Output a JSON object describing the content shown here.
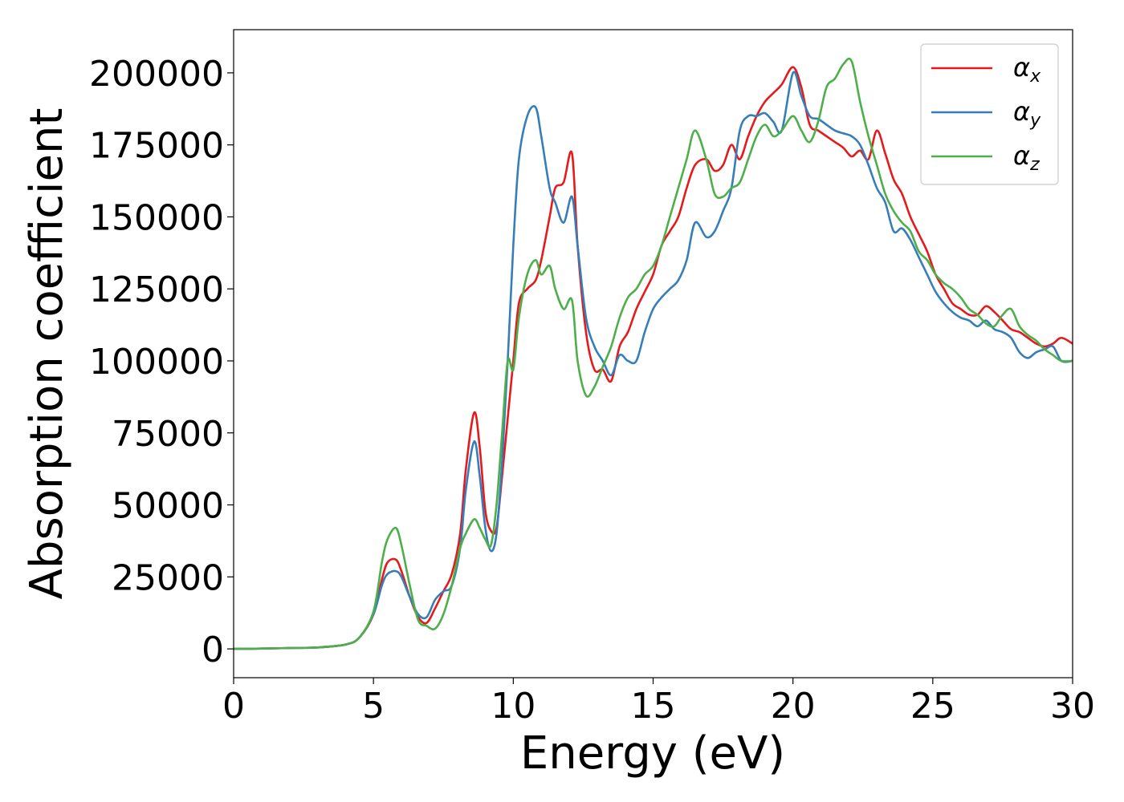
{
  "chart_data": {
    "type": "line",
    "title": "",
    "xlabel": "Energy (eV)",
    "ylabel": "Absorption coefficient",
    "xlim": [
      0,
      30
    ],
    "ylim": [
      -10000,
      215000
    ],
    "xticks": [
      0,
      5,
      10,
      15,
      20,
      25,
      30
    ],
    "yticks": [
      0,
      25000,
      50000,
      75000,
      100000,
      125000,
      150000,
      175000,
      200000
    ],
    "grid": false,
    "legend_position": "top-right",
    "series": [
      {
        "name": "α",
        "subscript": "x",
        "color": "#e41a1c",
        "x": [
          0,
          1,
          2,
          3,
          4,
          4.5,
          5,
          5.3,
          5.5,
          5.8,
          6.0,
          6.3,
          6.6,
          6.9,
          7.2,
          7.5,
          7.8,
          8.1,
          8.3,
          8.6,
          8.8,
          9.0,
          9.2,
          9.4,
          9.6,
          9.8,
          10.0,
          10.2,
          10.5,
          10.8,
          11.0,
          11.3,
          11.5,
          11.8,
          12.1,
          12.3,
          12.6,
          12.9,
          13.2,
          13.5,
          13.8,
          14.1,
          14.4,
          14.7,
          15.0,
          15.3,
          15.6,
          15.9,
          16.2,
          16.5,
          16.9,
          17.2,
          17.5,
          17.8,
          18.1,
          18.4,
          18.7,
          19.0,
          19.3,
          19.6,
          20.0,
          20.3,
          20.6,
          20.9,
          21.2,
          21.5,
          21.8,
          22.1,
          22.4,
          22.7,
          23.0,
          23.3,
          23.6,
          23.9,
          24.2,
          24.5,
          24.8,
          25.1,
          25.4,
          25.7,
          26.0,
          26.3,
          26.6,
          26.9,
          27.2,
          27.5,
          27.8,
          28.1,
          28.4,
          28.7,
          29.0,
          29.3,
          29.6,
          30.0
        ],
        "y": [
          0,
          100,
          300,
          500,
          1500,
          4000,
          12000,
          24000,
          30000,
          31000,
          27000,
          18000,
          11000,
          9000,
          14000,
          20000,
          26000,
          40000,
          62000,
          82000,
          70000,
          48000,
          41000,
          42000,
          60000,
          80000,
          100000,
          120000,
          125000,
          128000,
          135000,
          150000,
          160000,
          162000,
          172000,
          140000,
          110000,
          97000,
          97000,
          93000,
          105000,
          110000,
          118000,
          124000,
          130000,
          140000,
          145000,
          150000,
          160000,
          168000,
          170000,
          166000,
          168000,
          175000,
          170000,
          178000,
          185000,
          190000,
          193000,
          196000,
          202000,
          195000,
          182000,
          180000,
          178000,
          176000,
          174000,
          171000,
          173000,
          170000,
          180000,
          172000,
          163000,
          158000,
          150000,
          144000,
          138000,
          130000,
          125000,
          120000,
          118000,
          116000,
          116000,
          119000,
          117000,
          114000,
          111000,
          110000,
          108000,
          106000,
          105000,
          106000,
          108000,
          106000
        ]
      },
      {
        "name": "α",
        "subscript": "y",
        "color": "#377eb8",
        "x": [
          0,
          1,
          2,
          3,
          4,
          4.5,
          5,
          5.3,
          5.5,
          5.8,
          6.0,
          6.3,
          6.6,
          6.9,
          7.2,
          7.5,
          7.8,
          8.1,
          8.3,
          8.6,
          8.8,
          9.0,
          9.2,
          9.4,
          9.6,
          9.8,
          10.0,
          10.2,
          10.5,
          10.8,
          11.0,
          11.3,
          11.5,
          11.8,
          12.1,
          12.3,
          12.6,
          12.9,
          13.2,
          13.5,
          13.8,
          14.1,
          14.4,
          14.7,
          15.0,
          15.3,
          15.6,
          15.9,
          16.2,
          16.5,
          16.9,
          17.2,
          17.5,
          17.8,
          18.1,
          18.4,
          18.7,
          19.0,
          19.3,
          19.6,
          20.0,
          20.3,
          20.6,
          20.9,
          21.2,
          21.5,
          21.8,
          22.1,
          22.4,
          22.7,
          23.0,
          23.3,
          23.6,
          23.9,
          24.2,
          24.5,
          24.8,
          25.1,
          25.4,
          25.7,
          26.0,
          26.3,
          26.6,
          26.9,
          27.2,
          27.5,
          27.8,
          28.1,
          28.4,
          28.7,
          29.0,
          29.3,
          29.6,
          30.0
        ],
        "y": [
          0,
          100,
          300,
          500,
          1500,
          4000,
          12000,
          22000,
          26000,
          27000,
          25000,
          18000,
          12000,
          11000,
          17000,
          20000,
          22000,
          35000,
          55000,
          72000,
          60000,
          42000,
          34000,
          40000,
          65000,
          100000,
          140000,
          170000,
          185000,
          188000,
          178000,
          160000,
          155000,
          148000,
          157000,
          140000,
          115000,
          105000,
          100000,
          95000,
          102000,
          100000,
          100000,
          110000,
          118000,
          122000,
          125000,
          128000,
          135000,
          148000,
          143000,
          145000,
          152000,
          160000,
          180000,
          185000,
          185000,
          186000,
          183000,
          180000,
          200000,
          192000,
          185000,
          184000,
          182000,
          180000,
          179000,
          178000,
          175000,
          168000,
          160000,
          155000,
          145000,
          146000,
          142000,
          136000,
          130000,
          124000,
          120000,
          117000,
          115000,
          114000,
          112000,
          114000,
          111000,
          110000,
          108000,
          103000,
          101000,
          103000,
          104000,
          105000,
          100000,
          100000
        ]
      },
      {
        "name": "α",
        "subscript": "z",
        "color": "#4daf4a",
        "x": [
          0,
          1,
          2,
          3,
          4,
          4.5,
          5,
          5.3,
          5.5,
          5.8,
          6.0,
          6.3,
          6.6,
          6.9,
          7.2,
          7.5,
          7.8,
          8.1,
          8.3,
          8.6,
          8.8,
          9.0,
          9.2,
          9.4,
          9.6,
          9.8,
          10.0,
          10.2,
          10.5,
          10.8,
          11.0,
          11.3,
          11.5,
          11.8,
          12.1,
          12.3,
          12.6,
          12.9,
          13.2,
          13.5,
          13.8,
          14.1,
          14.4,
          14.7,
          15.0,
          15.3,
          15.6,
          15.9,
          16.2,
          16.5,
          16.9,
          17.2,
          17.5,
          17.8,
          18.1,
          18.4,
          18.7,
          19.0,
          19.3,
          19.6,
          20.0,
          20.3,
          20.6,
          20.9,
          21.2,
          21.5,
          21.8,
          22.1,
          22.4,
          22.7,
          23.0,
          23.3,
          23.6,
          23.9,
          24.2,
          24.5,
          24.8,
          25.1,
          25.4,
          25.7,
          26.0,
          26.3,
          26.6,
          26.9,
          27.2,
          27.5,
          27.8,
          28.1,
          28.4,
          28.7,
          29.0,
          29.3,
          29.6,
          30.0
        ],
        "y": [
          0,
          100,
          300,
          500,
          1500,
          4000,
          13000,
          30000,
          38000,
          42000,
          36000,
          22000,
          10000,
          8000,
          7000,
          12000,
          22000,
          35000,
          40000,
          45000,
          42000,
          38000,
          36000,
          50000,
          75000,
          100000,
          97000,
          115000,
          130000,
          135000,
          130000,
          133000,
          125000,
          118000,
          121000,
          100000,
          88000,
          91000,
          98000,
          105000,
          115000,
          122000,
          125000,
          130000,
          133000,
          140000,
          150000,
          160000,
          170000,
          180000,
          170000,
          158000,
          157000,
          160000,
          162000,
          170000,
          178000,
          182000,
          178000,
          180000,
          185000,
          180000,
          176000,
          183000,
          195000,
          198000,
          203000,
          204000,
          190000,
          178000,
          168000,
          158000,
          152000,
          148000,
          145000,
          138000,
          135000,
          130000,
          127000,
          125000,
          122000,
          118000,
          116000,
          113000,
          112000,
          116000,
          118000,
          112000,
          109000,
          107000,
          104000,
          102000,
          100000,
          100000
        ]
      }
    ]
  }
}
